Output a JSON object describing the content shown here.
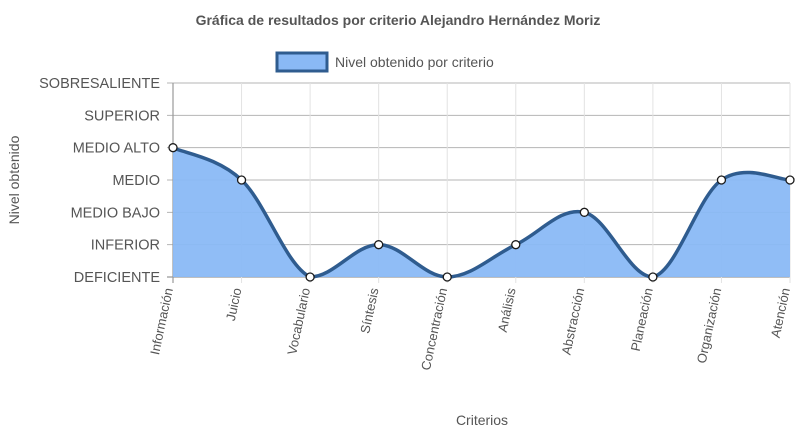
{
  "chart_data": {
    "type": "area",
    "title": "Gráfica de resultados por criterio Alejandro Hernández Moriz",
    "xlabel": "Criterios",
    "ylabel": "Nivel obtenido",
    "categories": [
      "Información",
      "Juicio",
      "Vocabulario",
      "Síntesis",
      "Concentración",
      "Análisis",
      "Abstracción",
      "Planeación",
      "Organización",
      "Atención"
    ],
    "y_levels": [
      "DEFICIENTE",
      "INFERIOR",
      "MEDIO BAJO",
      "MEDIO",
      "MEDIO ALTO",
      "SUPERIOR",
      "SOBRESALIENTE"
    ],
    "ylim": [
      0,
      6
    ],
    "series": [
      {
        "name": "Nivel obtenido por criterio",
        "values": [
          4,
          3,
          0,
          1,
          0,
          1,
          2,
          0,
          3,
          3
        ],
        "fill_color": "#8ab9f5",
        "line_color": "#2f5c8f"
      }
    ],
    "legend_position": "top",
    "grid": true
  }
}
